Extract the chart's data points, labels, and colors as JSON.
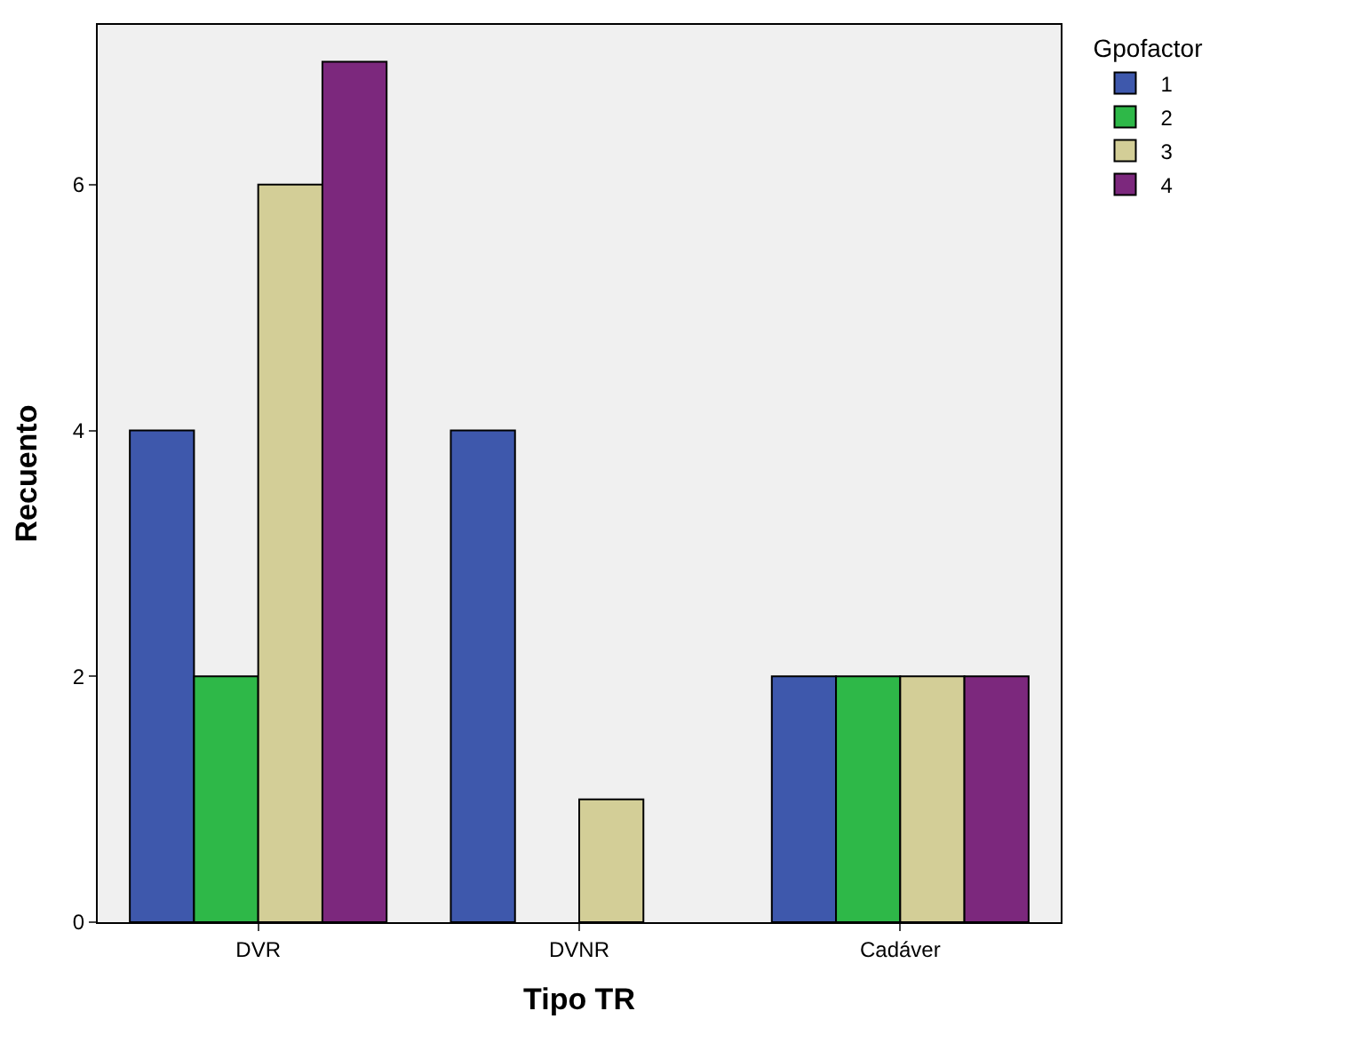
{
  "chart_data": {
    "type": "bar",
    "xlabel": "Tipo TR",
    "ylabel": "Recuento",
    "legend_title": "Gpofactor",
    "categories": [
      "DVR",
      "DVNR",
      "Cadáver"
    ],
    "series": [
      {
        "name": "1",
        "color": "#3e58ac",
        "values": [
          4,
          4,
          2
        ]
      },
      {
        "name": "2",
        "color": "#2eb848",
        "values": [
          2,
          null,
          2
        ]
      },
      {
        "name": "3",
        "color": "#d3ce97",
        "values": [
          6,
          1,
          2
        ]
      },
      {
        "name": "4",
        "color": "#7c287d",
        "values": [
          7,
          null,
          2
        ]
      }
    ],
    "ylim": [
      0,
      7.3
    ],
    "yticks": [
      0,
      2,
      4,
      6
    ],
    "grid": false,
    "legend": "top right"
  }
}
